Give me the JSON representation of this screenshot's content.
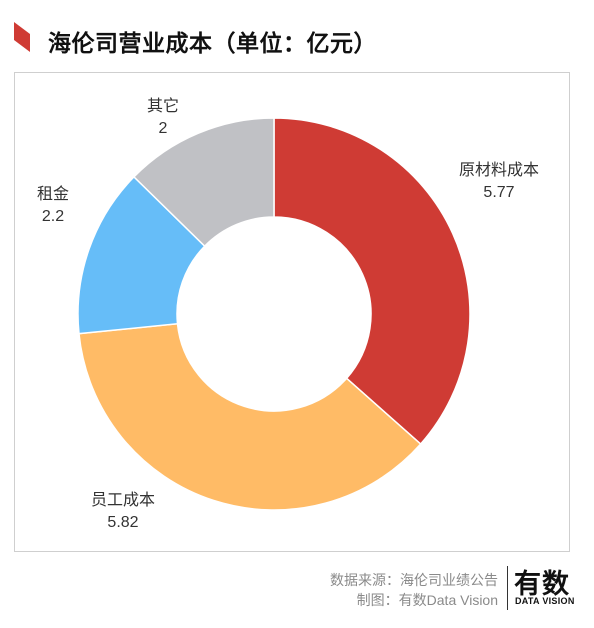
{
  "title": "海伦司营业成本（单位：亿元）",
  "colors": {
    "accent": "#cf3b34",
    "raw_material": "#cf3b34",
    "staff": "#ffbb66",
    "rent": "#66bdf8",
    "other": "#c0c1c5"
  },
  "chart_data": {
    "type": "pie",
    "variant": "donut",
    "title": "海伦司营业成本（单位：亿元）",
    "unit": "亿元",
    "categories": [
      "原材料成本",
      "员工成本",
      "租金",
      "其它"
    ],
    "values": [
      5.77,
      5.82,
      2.2,
      2
    ],
    "value_labels": [
      "5.77",
      "5.82",
      "2.2",
      "2"
    ],
    "colors": [
      "#cf3b34",
      "#ffbb66",
      "#66bdf8",
      "#c0c1c5"
    ],
    "legend": "none"
  },
  "footer": {
    "source": "数据来源：海伦司业绩公告",
    "maker": "制图：有数Data Vision"
  },
  "logo": {
    "main": "有数",
    "sub": "DATA VISION"
  }
}
